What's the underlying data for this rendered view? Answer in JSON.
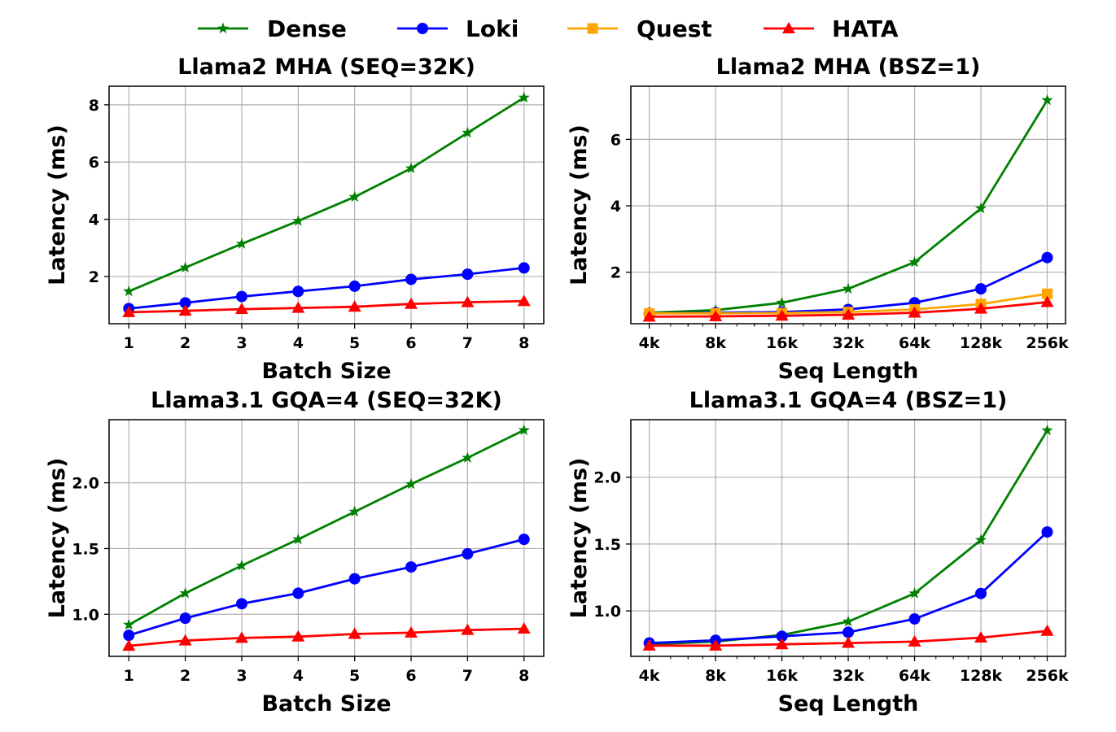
{
  "legend": [
    {
      "name": "Dense",
      "color": "#008000",
      "marker": "star"
    },
    {
      "name": "Loki",
      "color": "#0000ff",
      "marker": "circle"
    },
    {
      "name": "Quest",
      "color": "#ffa500",
      "marker": "square"
    },
    {
      "name": "HATA",
      "color": "#ff0000",
      "marker": "triangle"
    }
  ],
  "chart_data": [
    {
      "type": "line",
      "title": "Llama2 MHA (SEQ=32K)",
      "xlabel": "Batch Size",
      "ylabel": "Latency (ms)",
      "x": [
        1,
        2,
        3,
        4,
        5,
        6,
        7,
        8
      ],
      "x_tick_labels": [
        "1",
        "2",
        "3",
        "4",
        "5",
        "6",
        "7",
        "8"
      ],
      "xlim": [
        0.65,
        8.35
      ],
      "ylim": [
        0.35,
        8.65
      ],
      "y_ticks": [
        2,
        4,
        6,
        8
      ],
      "y_tick_labels": [
        "2",
        "4",
        "6",
        "8"
      ],
      "grid": true,
      "series": [
        {
          "name": "Dense",
          "values": [
            1.48,
            2.31,
            3.14,
            3.94,
            4.78,
            5.78,
            7.02,
            8.25
          ]
        },
        {
          "name": "Loki",
          "values": [
            0.88,
            1.08,
            1.3,
            1.48,
            1.66,
            1.9,
            2.08,
            2.3
          ]
        },
        {
          "name": "HATA",
          "values": [
            0.75,
            0.8,
            0.86,
            0.9,
            0.94,
            1.04,
            1.1,
            1.14
          ]
        }
      ]
    },
    {
      "type": "line",
      "title": "Llama2 MHA (BSZ=1)",
      "xlabel": "Seq Length",
      "ylabel": "Latency (ms)",
      "x_scale": "log2",
      "x": [
        4,
        8,
        16,
        32,
        64,
        128,
        256
      ],
      "x_tick_labels": [
        "4k",
        "8k",
        "16k",
        "32k",
        "64k",
        "128k",
        "256k"
      ],
      "xlim": [
        3.3,
        310
      ],
      "ylim": [
        0.45,
        7.6
      ],
      "y_ticks": [
        2,
        4,
        6
      ],
      "y_tick_labels": [
        "2",
        "4",
        "6"
      ],
      "grid": true,
      "series": [
        {
          "name": "Dense",
          "values": [
            0.78,
            0.86,
            1.08,
            1.5,
            2.3,
            3.92,
            7.18
          ]
        },
        {
          "name": "Loki",
          "values": [
            0.76,
            0.78,
            0.8,
            0.88,
            1.08,
            1.5,
            2.44
          ]
        },
        {
          "name": "Quest",
          "values": [
            0.76,
            0.76,
            0.77,
            0.8,
            0.88,
            1.04,
            1.35
          ]
        },
        {
          "name": "HATA",
          "values": [
            0.66,
            0.67,
            0.69,
            0.72,
            0.78,
            0.9,
            1.1
          ]
        }
      ]
    },
    {
      "type": "line",
      "title": "Llama3.1 GQA=4 (SEQ=32K)",
      "xlabel": "Batch Size",
      "ylabel": "Latency (ms)",
      "x": [
        1,
        2,
        3,
        4,
        5,
        6,
        7,
        8
      ],
      "x_tick_labels": [
        "1",
        "2",
        "3",
        "4",
        "5",
        "6",
        "7",
        "8"
      ],
      "xlim": [
        0.65,
        8.35
      ],
      "ylim": [
        0.68,
        2.48
      ],
      "y_ticks": [
        1.0,
        1.5,
        2.0
      ],
      "y_tick_labels": [
        "1.0",
        "1.5",
        "2.0"
      ],
      "grid": true,
      "series": [
        {
          "name": "Dense",
          "values": [
            0.92,
            1.16,
            1.37,
            1.57,
            1.78,
            1.99,
            2.19,
            2.4
          ]
        },
        {
          "name": "Loki",
          "values": [
            0.84,
            0.97,
            1.08,
            1.16,
            1.27,
            1.36,
            1.46,
            1.57
          ]
        },
        {
          "name": "HATA",
          "values": [
            0.76,
            0.8,
            0.82,
            0.83,
            0.85,
            0.86,
            0.88,
            0.89
          ]
        }
      ]
    },
    {
      "type": "line",
      "title": "Llama3.1 GQA=4 (BSZ=1)",
      "xlabel": "Seq Length",
      "ylabel": "Latency (ms)",
      "x_scale": "log2",
      "x": [
        4,
        8,
        16,
        32,
        64,
        128,
        256
      ],
      "x_tick_labels": [
        "4k",
        "8k",
        "16k",
        "32k",
        "64k",
        "128k",
        "256k"
      ],
      "xlim": [
        3.3,
        310
      ],
      "ylim": [
        0.66,
        2.43
      ],
      "y_ticks": [
        1.0,
        1.5,
        2.0
      ],
      "y_tick_labels": [
        "1.0",
        "1.5",
        "2.0"
      ],
      "grid": true,
      "series": [
        {
          "name": "Dense",
          "values": [
            0.75,
            0.77,
            0.82,
            0.92,
            1.13,
            1.53,
            2.35
          ]
        },
        {
          "name": "Loki",
          "values": [
            0.76,
            0.78,
            0.81,
            0.84,
            0.94,
            1.13,
            1.59
          ]
        },
        {
          "name": "HATA",
          "values": [
            0.74,
            0.74,
            0.75,
            0.76,
            0.77,
            0.8,
            0.85
          ]
        }
      ]
    }
  ]
}
